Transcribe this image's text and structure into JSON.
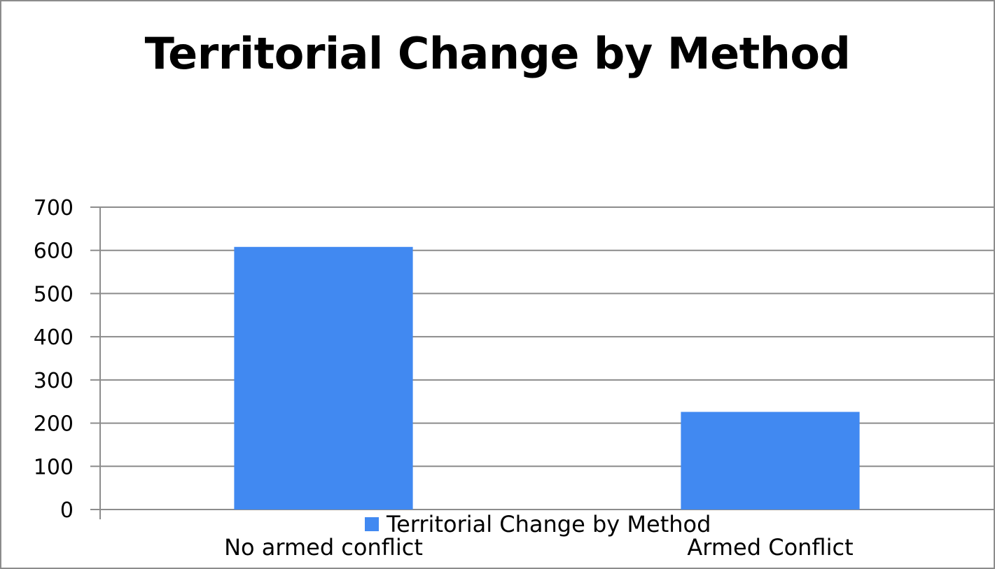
{
  "chart_data": {
    "type": "bar",
    "title": "Territorial Change by Method",
    "categories": [
      "No armed conflict",
      "Armed Conflict"
    ],
    "series": [
      {
        "name": "Territorial Change by Method",
        "values": [
          608,
          226
        ],
        "color": "#4189F1"
      }
    ],
    "xlabel": "",
    "ylabel": "",
    "ylim": [
      0,
      700
    ],
    "yticks": [
      0,
      100,
      200,
      300,
      400,
      500,
      600,
      700
    ],
    "grid": true,
    "legend_position": "bottom"
  }
}
